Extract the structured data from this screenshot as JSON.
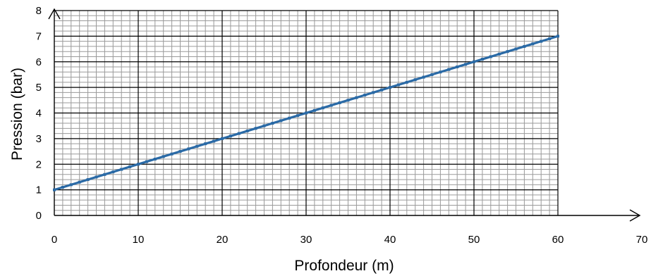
{
  "chart_data": {
    "type": "line",
    "title": "",
    "xlabel": "Profondeur (m)",
    "ylabel": "Pression (bar)",
    "xlim": [
      0,
      70
    ],
    "ylim": [
      0,
      8
    ],
    "x_ticks": [
      "0",
      "10",
      "20",
      "30",
      "40",
      "50",
      "60",
      "70"
    ],
    "y_ticks": [
      "0",
      "1",
      "2",
      "3",
      "4",
      "5",
      "6",
      "7",
      "8"
    ],
    "grid": true,
    "minor_grid": {
      "x_step": 1,
      "y_step": 0.2
    },
    "legend": "none",
    "series": [
      {
        "color": "#2a6aa6",
        "marker": "square",
        "x": [
          0,
          60
        ],
        "y": [
          1,
          7
        ]
      }
    ]
  }
}
